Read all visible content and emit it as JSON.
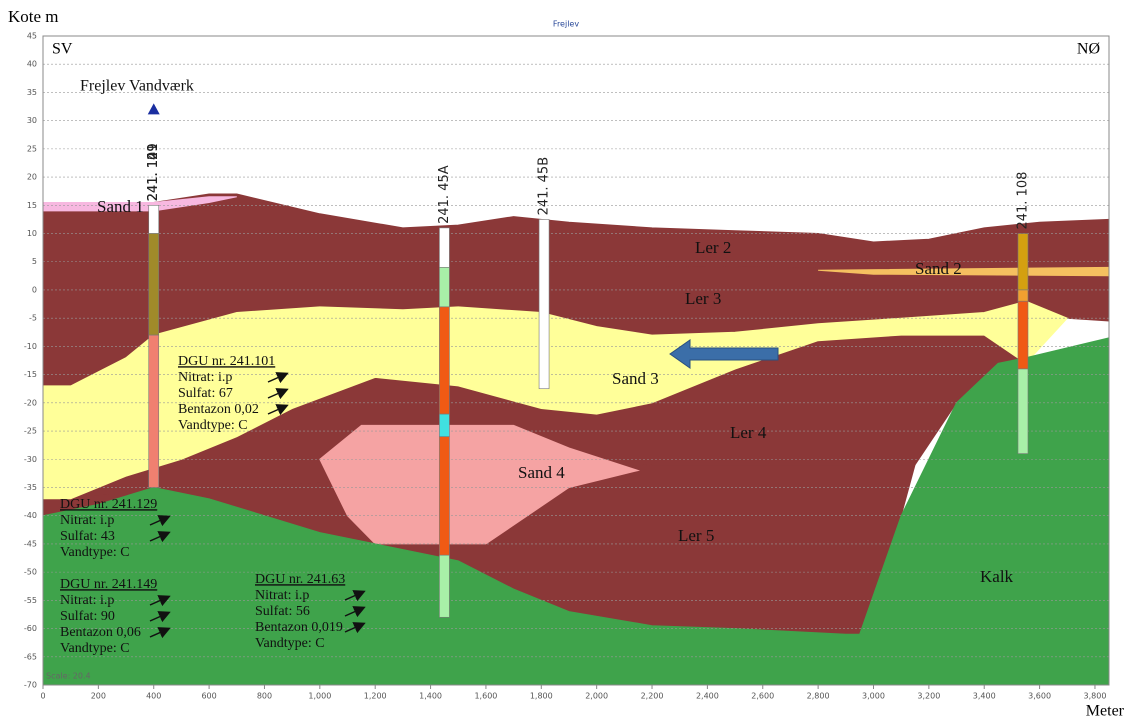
{
  "chart_data": {
    "type": "cross-section",
    "title": "Frejlev",
    "y_label": "Kote m",
    "x_label": "Meter",
    "left_label": "SV",
    "right_label": "NØ",
    "scale_label": "Scale: 20.4",
    "xlim": [
      0,
      3850
    ],
    "ylim": [
      -70,
      45
    ],
    "xticks": [
      0,
      200,
      400,
      600,
      800,
      {
        "value": 1000,
        "label": "1,000"
      },
      {
        "value": 1200,
        "label": "1,200"
      },
      {
        "value": 1400,
        "label": "1,400"
      },
      {
        "value": 1600,
        "label": "1,600"
      },
      {
        "value": 1800,
        "label": "1,800"
      },
      {
        "value": 2000,
        "label": "2,000"
      },
      {
        "value": 2200,
        "label": "2,200"
      },
      {
        "value": 2400,
        "label": "2,400"
      },
      {
        "value": 2600,
        "label": "2,600"
      },
      {
        "value": 2800,
        "label": "2,800"
      },
      {
        "value": 3000,
        "label": "3,000"
      },
      {
        "value": 3200,
        "label": "3,200"
      },
      {
        "value": 3400,
        "label": "3,400"
      },
      {
        "value": 3600,
        "label": "3,600"
      },
      {
        "value": 3800,
        "label": "3,800"
      }
    ],
    "yticks": [
      -70,
      -65,
      -60,
      -55,
      -50,
      -45,
      -40,
      -35,
      -30,
      -25,
      -20,
      -15,
      -10,
      -5,
      0,
      5,
      10,
      15,
      20,
      25,
      30,
      35,
      40,
      45
    ],
    "grid": true,
    "layers": [
      {
        "name": "Ler 2",
        "color": "#8b3838",
        "x": [
          0,
          150,
          400,
          600,
          700,
          1000,
          1300,
          1500,
          1700,
          1900,
          2200,
          2500,
          2800,
          3000,
          3200,
          3400,
          3600,
          3850,
          3850,
          0
        ],
        "y": [
          15,
          15,
          15.5,
          17,
          17,
          13.5,
          11,
          11.5,
          13,
          12,
          11,
          10.5,
          10,
          8.5,
          9,
          11,
          12,
          12.5,
          3.5,
          5
        ]
      },
      {
        "name": "Ler 3",
        "color": "#8b3838",
        "x": [
          0,
          3850,
          3850,
          3700,
          3550,
          3400,
          3100,
          2800,
          2500,
          2200,
          2000,
          1800,
          1500,
          1300,
          1000,
          700,
          400,
          300,
          100,
          0
        ],
        "y": [
          5,
          3.5,
          -5.5,
          -5,
          -2,
          -4,
          -5,
          -6,
          -7.5,
          -8,
          -6.5,
          -4,
          -3,
          -3.5,
          -3,
          -4,
          -8,
          -12,
          -17,
          -17
        ]
      },
      {
        "name": "Ler 4",
        "color": "#8b3838",
        "x": [
          0,
          100,
          300,
          500,
          700,
          900,
          1200,
          1500,
          1800,
          2000,
          2200,
          2500,
          2800,
          3100,
          3400,
          3550,
          3450,
          3300,
          3150,
          2200,
          0
        ],
        "y": [
          -37,
          -37,
          -33,
          -30,
          -26,
          -21,
          -15.5,
          -17,
          -21,
          -22,
          -20,
          -14,
          -9,
          -8,
          -8,
          -13,
          -13,
          -20,
          -31,
          -31,
          -37
        ]
      },
      {
        "name": "Ler 5",
        "color": "#8b3838",
        "x": [
          0,
          2200,
          3150,
          3100,
          2950,
          2900,
          2500,
          2200,
          1900,
          1700,
          1500,
          1200,
          1000,
          800,
          600,
          400,
          200,
          0
        ],
        "y": [
          -37,
          -31,
          -31,
          -40,
          -61,
          -61,
          -60,
          -59.5,
          -57,
          -53,
          -48,
          -45,
          -43,
          -40,
          -37,
          -35,
          -38,
          -40
        ]
      },
      {
        "name": "Sand 3",
        "color": "#ffff99",
        "x": [
          0,
          100,
          300,
          400,
          700,
          1000,
          1300,
          1500,
          1800,
          2000,
          2200,
          2500,
          2800,
          3100,
          3400,
          3550,
          3700,
          3550,
          3400,
          3100,
          2800,
          2500,
          2200,
          2000,
          1800,
          1500,
          1200,
          900,
          700,
          500,
          300,
          100,
          0
        ],
        "y": [
          -17,
          -17,
          -12,
          -8,
          -4,
          -3,
          -3.5,
          -3,
          -4,
          -6.5,
          -8,
          -7.5,
          -6,
          -5,
          -4,
          -2,
          -5,
          -13,
          -8,
          -8,
          -9,
          -14,
          -20,
          -22,
          -21,
          -17,
          -15.5,
          -21,
          -26,
          -30,
          -33,
          -37,
          -37
        ]
      },
      {
        "name": "Sand 4",
        "color": "#f5a3a3",
        "x": [
          1000,
          1150,
          1700,
          1900,
          2150,
          1900,
          1600,
          1200,
          1100
        ],
        "y": [
          -30,
          -24,
          -24,
          -28,
          -32,
          -35,
          -45,
          -45,
          -40
        ]
      },
      {
        "name": "Kalk",
        "color": "#3fa34b",
        "x": [
          0,
          200,
          400,
          600,
          800,
          1000,
          1200,
          1500,
          1700,
          1900,
          2200,
          2500,
          2900,
          2950,
          3100,
          3300,
          3450,
          3550,
          3850,
          3850,
          0
        ],
        "y": [
          -40,
          -38,
          -35,
          -37,
          -40,
          -43,
          -45,
          -48,
          -53,
          -57,
          -59.5,
          -60,
          -61,
          -61,
          -40,
          -20,
          -13,
          -12,
          -8.5,
          -70,
          -70
        ]
      },
      {
        "name": "Sand 2",
        "color": "#f5c060",
        "x": [
          2800,
          3850,
          3850,
          3000
        ],
        "y": [
          3.5,
          4,
          2.5,
          2.8
        ]
      },
      {
        "name": "Sand 1",
        "color": "#f7b8e0",
        "x": [
          0,
          400,
          600,
          700,
          600,
          400,
          0
        ],
        "y": [
          15.5,
          15.5,
          16.5,
          16.5,
          15.5,
          14,
          14
        ]
      }
    ],
    "boreholes": [
      {
        "name": "241. 101",
        "x": 400,
        "segments": [
          {
            "from": 15,
            "to": 10,
            "color": "#ffffff"
          },
          {
            "from": 10,
            "to": -8,
            "color": "#a08a2a"
          },
          {
            "from": -8,
            "to": -35,
            "color": "#f08070"
          }
        ]
      },
      {
        "name": "241. 129",
        "x": 400
      },
      {
        "name": "241. 149",
        "x": 400
      },
      {
        "name": "241. 45A",
        "x": 1450,
        "segments": [
          {
            "from": 11,
            "to": 4,
            "color": "#ffffff"
          },
          {
            "from": 4,
            "to": -3,
            "color": "#a8f0a8"
          },
          {
            "from": -3,
            "to": -22,
            "color": "#f05a14"
          },
          {
            "from": -22,
            "to": -26,
            "color": "#40e0e0"
          },
          {
            "from": -26,
            "to": -47,
            "color": "#f05a14"
          },
          {
            "from": -47,
            "to": -58,
            "color": "#a8f0a8"
          }
        ]
      },
      {
        "name": "241. 45B",
        "x": 1810,
        "segments": [
          {
            "from": 12.5,
            "to": -17.5,
            "color": "#ffffff"
          }
        ]
      },
      {
        "name": "241. 108",
        "x": 3540,
        "segments": [
          {
            "from": 10,
            "to": 0,
            "color": "#d4a010"
          },
          {
            "from": 0,
            "to": -2,
            "color": "#f0a030"
          },
          {
            "from": -2,
            "to": -14,
            "color": "#f05a14"
          },
          {
            "from": -14,
            "to": -29,
            "color": "#a8f0a8"
          }
        ]
      }
    ],
    "waterworks": {
      "label": "Frejlev Vandværk",
      "x": 400,
      "y": 32
    },
    "notes": [
      {
        "title": "DGU nr. 241.101",
        "lines": [
          "Nitrat: i.p",
          "Sulfat: 67",
          "Bentazon 0,02",
          "Vandtype: C"
        ]
      },
      {
        "title": "DGU nr. 241.129",
        "lines": [
          "Nitrat: i.p",
          "Sulfat: 43",
          "Vandtype: C"
        ]
      },
      {
        "title": "DGU nr. 241.149",
        "lines": [
          "Nitrat: i.p",
          "Sulfat: 90",
          "Bentazon 0,06",
          "Vandtype: C"
        ]
      },
      {
        "title": "DGU nr. 241.63",
        "lines": [
          "Nitrat: i.p",
          "Sulfat: 56",
          "Bentazon 0,019",
          "Vandtype: C"
        ]
      }
    ]
  }
}
